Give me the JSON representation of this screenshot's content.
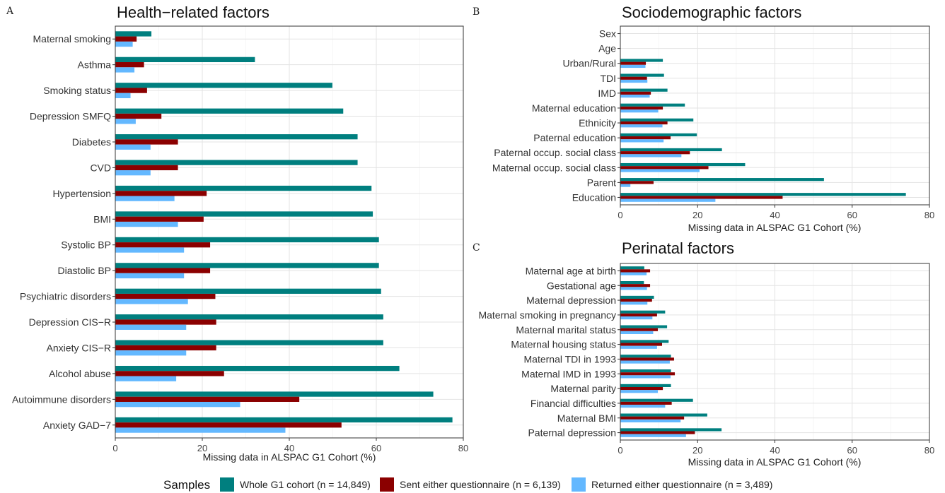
{
  "legend": {
    "title": "Samples",
    "items": [
      {
        "label": "Whole G1 cohort (n = 14,849)",
        "color": "#007f7f"
      },
      {
        "label": "Sent either questionnaire (n = 6,139)",
        "color": "#8b0000"
      },
      {
        "label": "Returned either questionnaire (n = 3,489)",
        "color": "#63b8ff"
      }
    ]
  },
  "chart_data": [
    {
      "panel": "A",
      "type": "bar",
      "orientation": "horizontal",
      "title": "Health−related factors",
      "xlabel": "Missing data in ALSPAC G1 Cohort (%)",
      "xlim": [
        0,
        80
      ],
      "xticks": [
        0,
        20,
        40,
        60,
        80
      ],
      "categories": [
        "Maternal smoking",
        "Asthma",
        "Smoking status",
        "Depression SMFQ",
        "Diabetes",
        "CVD",
        "Hypertension",
        "BMI",
        "Systolic BP",
        "Diastolic BP",
        "Psychiatric disorders",
        "Depression CIS−R",
        "Anxiety CIS−R",
        "Alcohol abuse",
        "Autoimmune disorders",
        "Anxiety GAD−7"
      ],
      "series": [
        {
          "name": "Whole G1 cohort (n = 14,849)",
          "values": [
            8.3,
            32.1,
            49.9,
            52.4,
            55.7,
            55.7,
            58.9,
            59.2,
            60.6,
            60.6,
            61.1,
            61.6,
            61.6,
            65.3,
            73.1,
            77.5
          ]
        },
        {
          "name": "Sent either questionnaire (n = 6,139)",
          "values": [
            4.9,
            6.6,
            7.3,
            10.6,
            14.4,
            14.4,
            21.0,
            20.3,
            21.8,
            21.8,
            23.0,
            23.2,
            23.2,
            25.0,
            42.3,
            52.0
          ]
        },
        {
          "name": "Returned either questionnaire (n = 3,489)",
          "values": [
            4.0,
            4.4,
            3.5,
            4.7,
            8.1,
            8.1,
            13.6,
            14.4,
            15.8,
            15.8,
            16.7,
            16.3,
            16.3,
            14.0,
            28.7,
            39.1
          ]
        }
      ],
      "grid": true,
      "box": {
        "x0": 163,
        "x1": 655,
        "y0": 37,
        "y1": 620
      }
    },
    {
      "panel": "B",
      "type": "bar",
      "orientation": "horizontal",
      "title": "Sociodemographic factors",
      "xlabel": "Missing data in ALSPAC G1 Cohort (%)",
      "xlim": [
        0,
        80
      ],
      "xticks": [
        0,
        20,
        40,
        60,
        80
      ],
      "categories": [
        "Sex",
        "Age",
        "Urban/Rural",
        "TDI",
        "IMD",
        "Maternal education",
        "Ethnicity",
        "Paternal education",
        "Paternal occup. social class",
        "Maternal occup. social class",
        "Parent",
        "Education"
      ],
      "series": [
        {
          "name": "Whole G1 cohort (n = 14,849)",
          "values": [
            0,
            0,
            11.0,
            11.3,
            12.2,
            16.7,
            18.9,
            19.8,
            26.3,
            32.3,
            52.7,
            73.9
          ]
        },
        {
          "name": "Sent either questionnaire (n = 6,139)",
          "values": [
            0,
            0,
            6.6,
            6.9,
            7.9,
            11.0,
            12.2,
            13.0,
            18.0,
            22.8,
            8.6,
            42.0
          ]
        },
        {
          "name": "Returned either questionnaire (n = 3,489)",
          "values": [
            0,
            0,
            6.5,
            7.0,
            7.6,
            9.8,
            10.9,
            11.2,
            15.8,
            20.5,
            2.6,
            24.6
          ]
        }
      ],
      "grid": true,
      "box": {
        "x0": 877,
        "x1": 1314,
        "y0": 37,
        "y1": 290
      }
    },
    {
      "panel": "C",
      "type": "bar",
      "orientation": "horizontal",
      "title": "Perinatal factors",
      "xlabel": "Missing data in ALSPAC G1 Cohort (%)",
      "xlim": [
        0,
        80
      ],
      "xticks": [
        0,
        20,
        40,
        60,
        80
      ],
      "categories": [
        "Maternal age at birth",
        "Gestational age",
        "Maternal depression",
        "Maternal smoking in pregnancy",
        "Maternal marital status",
        "Maternal housing status",
        "Maternal TDI in 1993",
        "Maternal IMD in 1993",
        "Maternal parity",
        "Financial difficulties",
        "Maternal BMI",
        "Paternal depression"
      ],
      "series": [
        {
          "name": "Whole G1 cohort (n = 14,849)",
          "values": [
            6.2,
            6.1,
            8.7,
            11.6,
            12.1,
            12.5,
            13.1,
            13.1,
            13.1,
            18.8,
            22.5,
            26.2
          ]
        },
        {
          "name": "Sent either questionnaire (n = 6,139)",
          "values": [
            7.7,
            7.7,
            8.2,
            9.5,
            9.7,
            10.8,
            13.9,
            14.1,
            11.0,
            13.3,
            16.5,
            19.3
          ]
        },
        {
          "name": "Returned either questionnaire (n = 3,489)",
          "values": [
            6.8,
            6.9,
            7.0,
            8.3,
            8.5,
            9.5,
            12.8,
            13.0,
            9.7,
            11.6,
            15.6,
            17.0
          ]
        }
      ],
      "grid": true,
      "box": {
        "x0": 877,
        "x1": 1314,
        "y0": 373,
        "y1": 623
      }
    }
  ]
}
